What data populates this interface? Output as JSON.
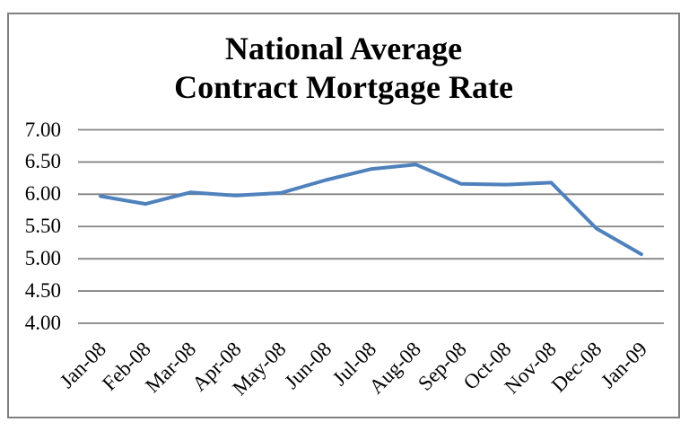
{
  "chart_data": {
    "type": "line",
    "title": "National Average Contract Mortgage Rate",
    "title_lines": [
      "National Average",
      "Contract Mortgage Rate"
    ],
    "categories": [
      "Jan-08",
      "Feb-08",
      "Mar-08",
      "Apr-08",
      "May-08",
      "Jun-08",
      "Jul-08",
      "Aug-08",
      "Sep-08",
      "Oct-08",
      "Nov-08",
      "Dec-08",
      "Jan-09"
    ],
    "values": [
      5.97,
      5.85,
      6.03,
      5.98,
      6.02,
      6.22,
      6.39,
      6.46,
      6.16,
      6.15,
      6.18,
      5.47,
      5.07
    ],
    "xlabel": "",
    "ylabel": "",
    "ylim": [
      4.0,
      7.0
    ],
    "ytick_step": 0.5,
    "ytick_labels": [
      "4.00",
      "4.50",
      "5.00",
      "5.50",
      "6.00",
      "6.50",
      "7.00"
    ],
    "grid": true,
    "legend": false,
    "series_color": "#4F81BD",
    "gridline_color": "#848484",
    "border_color": "#808080"
  }
}
